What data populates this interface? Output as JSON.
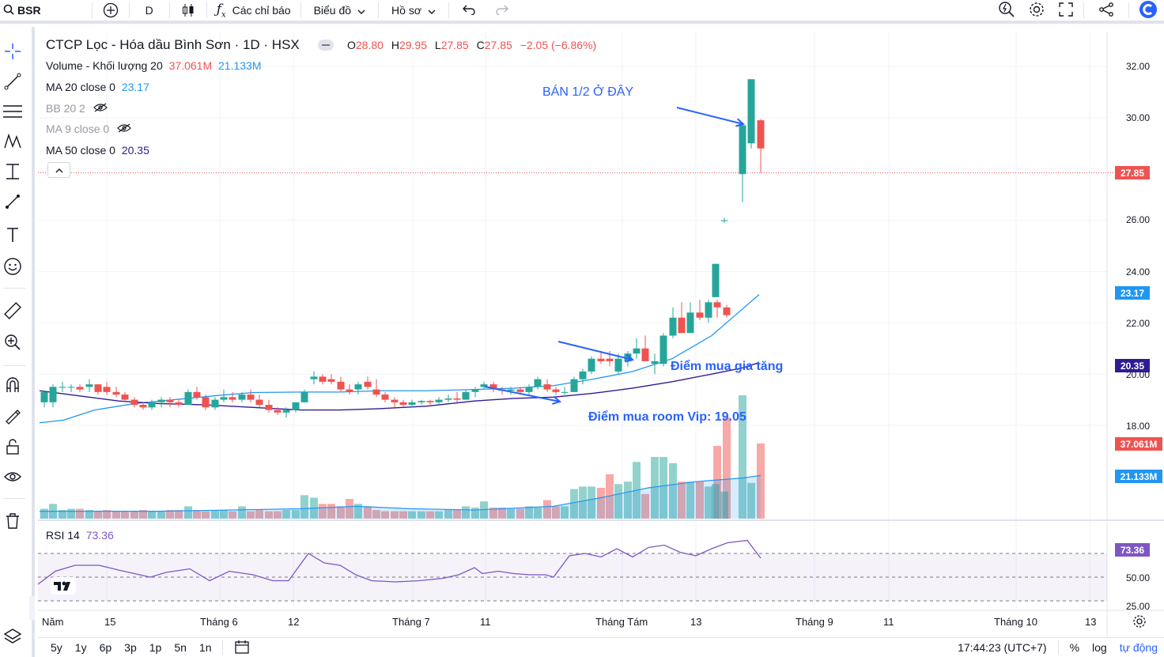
{
  "topbar": {
    "symbol": "BSR",
    "interval": "D",
    "indicators_label": "Các chỉ báo",
    "chart_menu": "Biểu đồ",
    "profile_menu": "Hồ sơ"
  },
  "header": {
    "title": "CTCP Lọc - Hóa dầu Bình Sơn · 1D · HSX",
    "o_label": "O",
    "o_value": "28.80",
    "h_label": "H",
    "h_value": "29.95",
    "l_label": "L",
    "l_value": "27.85",
    "c_label": "C",
    "c_value": "27.85",
    "change": "−2.05 (−6.86%)"
  },
  "legend": {
    "volume_name": "Volume - Khối lượng 20",
    "volume_v1": "37.061M",
    "volume_v2": "21.133M",
    "ma20_name": "MA 20 close 0",
    "ma20_value": "23.17",
    "bb_name": "BB 20 2",
    "ma9_name": "MA 9 close 0",
    "ma50_name": "MA 50 close 0",
    "ma50_value": "20.35",
    "rsi_name": "RSI 14",
    "rsi_value": "73.36"
  },
  "price_axis": {
    "ticks": [
      "32.00",
      "30.00",
      "27.85",
      "26.00",
      "24.00",
      "23.17",
      "22.00",
      "20.35",
      "20.00",
      "18.00",
      "37.061M",
      "21.133M"
    ],
    "last_price": "27.85",
    "ma20_tag": "23.17",
    "ma50_tag": "20.35",
    "vol_tag1": "37.061M",
    "vol_tag2": "21.133M",
    "rsi_tag": "73.36",
    "rsi_ticks": [
      "50.00",
      "25.00"
    ]
  },
  "time_axis": [
    "Năm",
    "15",
    "Tháng 6",
    "12",
    "Tháng 7",
    "11",
    "Tháng Tám",
    "13",
    "Tháng 9",
    "11",
    "Tháng 10",
    "13"
  ],
  "annotations": {
    "sell": "BÁN 1/2 Ở ĐÂY",
    "add": "Điểm mua gia tăng",
    "vip": "Điểm mua room Vip: 19.05"
  },
  "bottombar": {
    "ranges": [
      "5y",
      "1y",
      "6p",
      "3p",
      "1p",
      "5n",
      "1n"
    ],
    "clock": "17:44:23 (UTC+7)",
    "percent": "%",
    "log": "log",
    "auto": "tự động"
  },
  "colors": {
    "up": "#26a69a",
    "down": "#ef5350",
    "ma20": "#2196f3",
    "ma50": "#311b92",
    "rsi": "#7e57c2",
    "accent": "#2962ff"
  }
}
